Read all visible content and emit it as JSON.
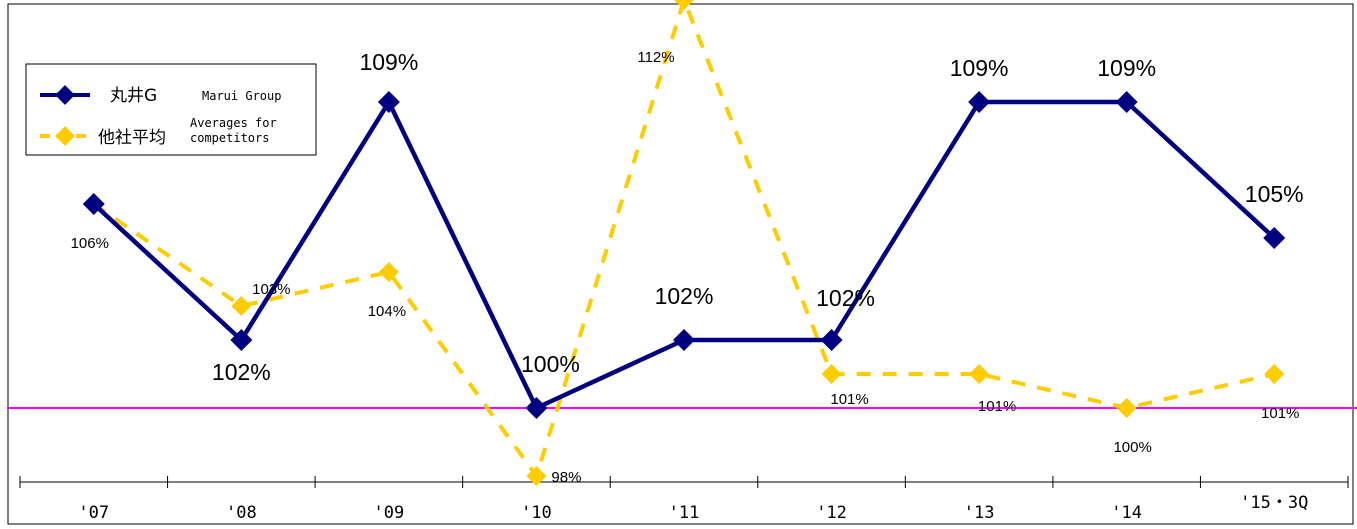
{
  "chart_data": {
    "type": "line",
    "categories": [
      "'07",
      "'08",
      "'09",
      "'10",
      "'11",
      "'12",
      "'13",
      "'14",
      "'15・3Q"
    ],
    "series": [
      {
        "name": "丸井G",
        "name_en": "Marui Group",
        "color": "#000080",
        "style": "solid",
        "values": [
          106,
          102,
          109,
          100,
          102,
          102,
          109,
          109,
          105
        ],
        "labels": [
          "",
          "102%",
          "109%",
          "100%",
          "102%",
          "102%",
          "109%",
          "109%",
          "105%"
        ]
      },
      {
        "name": "他社平均",
        "name_en": "Averages for competitors",
        "color": "#FFCC00",
        "style": "dashed",
        "values": [
          106,
          103,
          104,
          98,
          112,
          101,
          101,
          100,
          101
        ],
        "labels": [
          "106%",
          "103%",
          "104%",
          "98%",
          "112%",
          "101%",
          "101%",
          "100%",
          "101%"
        ]
      }
    ],
    "reference_line": {
      "value": 100,
      "color": "#FF00FF"
    },
    "legend_position": "top-left",
    "grid": false
  }
}
